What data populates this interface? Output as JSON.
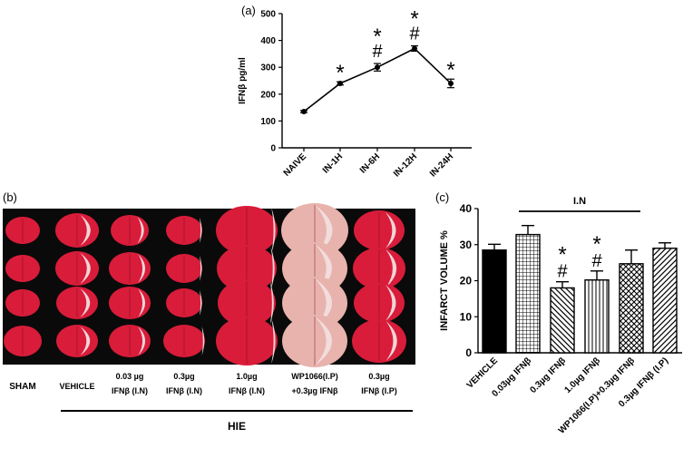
{
  "panels": {
    "a_label": "(a)",
    "b_label": "(b)",
    "c_label": "(c)"
  },
  "photo_panel": {
    "columns": [
      {
        "line1": "SHAM",
        "line2": ""
      },
      {
        "line1": "VEHICLE",
        "line2": ""
      },
      {
        "line1": "0.03 µg",
        "line2": "IFNβ (I.N)"
      },
      {
        "line1": "0.3µg",
        "line2": "IFNβ (I.N)"
      },
      {
        "line1": "1.0µg",
        "line2": "IFNβ (I.N)"
      },
      {
        "line1": "WP1066(I.P)",
        "line2": "+0.3µg IFNβ"
      },
      {
        "line1": "0.3µg",
        "line2": "IFNβ (I.P)"
      }
    ],
    "group_label": "HIE",
    "colors": {
      "background": "#0a0a0a",
      "tissue": "#d81c3a",
      "infarct": "#f2dede"
    }
  },
  "chart_data": [
    {
      "type": "line",
      "panel": "a",
      "categories": [
        "NAIVE",
        "IN-1H",
        "IN-6H",
        "IN-12H",
        "IN-24H"
      ],
      "values": [
        135,
        240,
        300,
        370,
        240
      ],
      "errors": [
        4,
        6,
        14,
        10,
        16
      ],
      "annotations": [
        {
          "category": "IN-1H",
          "marks": [
            "*"
          ]
        },
        {
          "category": "IN-6H",
          "marks": [
            "*",
            "#"
          ]
        },
        {
          "category": "IN-12H",
          "marks": [
            "*",
            "#"
          ]
        },
        {
          "category": "IN-24H",
          "marks": [
            "*"
          ]
        }
      ],
      "ylabel": "IFNβ pg/ml",
      "xlabel": "",
      "ylim": [
        0,
        500
      ],
      "yticks": [
        0,
        100,
        200,
        300,
        400,
        500
      ]
    },
    {
      "type": "bar",
      "panel": "c",
      "categories": [
        "VEHICLE",
        "0.03µg IFNβ",
        "0.3µg IFNβ",
        "1.0µg IFNβ",
        "WP1066(I.P)+0.3µg IFNβ",
        "0.3µg IFNβ (I.P)"
      ],
      "values": [
        28.5,
        32.8,
        18.0,
        20.2,
        24.7,
        29.0
      ],
      "errors": [
        1.6,
        2.5,
        1.7,
        2.5,
        3.8,
        1.5
      ],
      "patterns": [
        "solid",
        "grid",
        "diag-down",
        "vertical",
        "crosshatch",
        "diag-up"
      ],
      "annotations": [
        {
          "category": "0.3µg IFNβ",
          "marks": [
            "*",
            "#"
          ]
        },
        {
          "category": "1.0µg IFNβ",
          "marks": [
            "*",
            "#"
          ]
        }
      ],
      "bracket_label": "I.N",
      "ylabel": "INFARCT VOLUME %",
      "xlabel": "",
      "ylim": [
        0,
        40
      ],
      "yticks": [
        0,
        10,
        20,
        30,
        40
      ]
    }
  ]
}
